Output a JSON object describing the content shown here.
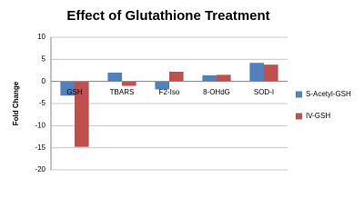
{
  "chart_data": {
    "type": "bar",
    "title": "Effect of Glutathione Treatment",
    "y_label": "Fold Change",
    "categories": [
      "GSH",
      "TBARS",
      "F2-Iso",
      "8-OHdG",
      "SOD-I"
    ],
    "series": [
      {
        "name": "S-Acetyl-GSH",
        "color": "#4f81bd",
        "values": [
          -3.2,
          2.0,
          -1.8,
          1.4,
          4.2
        ]
      },
      {
        "name": "IV-GSH",
        "color": "#c0504d",
        "values": [
          -14.8,
          -1.0,
          2.2,
          1.5,
          3.8
        ]
      }
    ],
    "ylim": [
      -20,
      10
    ],
    "yticks": [
      -20,
      -15,
      -10,
      -5,
      0,
      5,
      10
    ],
    "grid": true,
    "legend": "right"
  }
}
